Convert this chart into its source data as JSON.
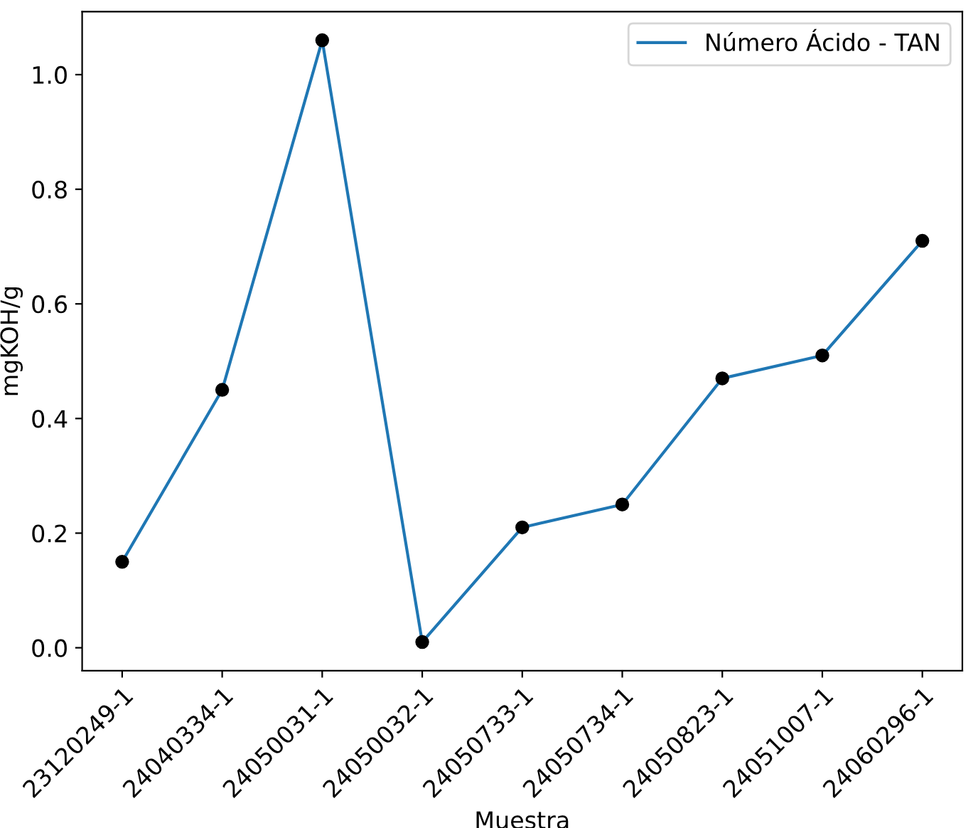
{
  "chart_data": {
    "type": "line",
    "xlabel": "Muestra",
    "ylabel": "mgKOH/g",
    "categories": [
      "23120249-1",
      "24040334-1",
      "24050031-1",
      "24050032-1",
      "24050733-1",
      "24050734-1",
      "24050823-1",
      "24051007-1",
      "24060296-1"
    ],
    "series": [
      {
        "name": "Número Ácido - TAN",
        "color": "#1f77b4",
        "values": [
          0.15,
          0.45,
          1.06,
          0.01,
          0.21,
          0.25,
          0.47,
          0.51,
          0.71
        ]
      },
      {
        "type": "scatter",
        "color": "#000000",
        "marker": "circle",
        "values": [
          0.15,
          0.45,
          1.06,
          0.01,
          0.21,
          0.25,
          0.47,
          0.51,
          0.71
        ]
      }
    ],
    "ylim": [
      -0.04,
      1.11
    ],
    "yticks": [
      {
        "value": 0,
        "label": "0.0"
      },
      0.2,
      0.4,
      0.6,
      0.8,
      {
        "value": 1,
        "label": "1.0"
      }
    ],
    "grid": false,
    "legend": "top right"
  }
}
